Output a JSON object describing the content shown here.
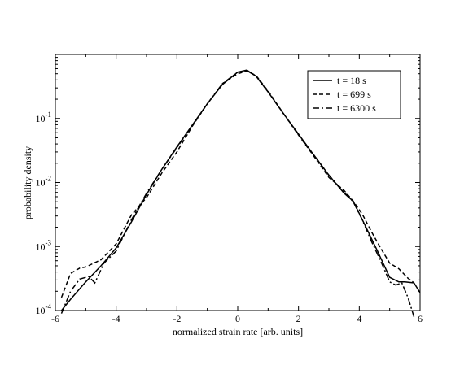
{
  "chart_data": {
    "type": "line",
    "title": "",
    "xlabel": "normalized strain rate [arb. units]",
    "ylabel": "probability density",
    "xlim": [
      -6,
      6
    ],
    "ylim": [
      0.0001,
      1.0
    ],
    "yscale": "log",
    "grid": false,
    "legend_position": "top-right",
    "x_ticks": [
      -6,
      -4,
      -2,
      0,
      2,
      4,
      6
    ],
    "x_tick_labels": [
      "-6",
      "-4",
      "-2",
      "0",
      "2",
      "4",
      "6"
    ],
    "y_ticks": [
      0.0001,
      0.001,
      0.01,
      0.1
    ],
    "y_tick_labels": [
      {
        "base": "10",
        "exp": "-4"
      },
      {
        "base": "10",
        "exp": "-3"
      },
      {
        "base": "10",
        "exp": "-2"
      },
      {
        "base": "10",
        "exp": "-1"
      }
    ],
    "series": [
      {
        "name": "t = 18 s",
        "dash": "solid",
        "x": [
          -5.8,
          -5.5,
          -5.0,
          -4.5,
          -4.0,
          -3.5,
          -3.0,
          -2.5,
          -2.0,
          -1.5,
          -1.0,
          -0.5,
          0.0,
          0.3,
          0.6,
          1.0,
          1.5,
          2.0,
          2.5,
          3.0,
          3.5,
          3.8,
          4.2,
          4.6,
          5.0,
          5.3,
          5.5,
          5.8,
          6.0
        ],
        "y": [
          0.0001,
          0.00015,
          0.00028,
          0.0005,
          0.00095,
          0.0024,
          0.0065,
          0.016,
          0.036,
          0.078,
          0.17,
          0.34,
          0.53,
          0.57,
          0.46,
          0.26,
          0.12,
          0.057,
          0.027,
          0.013,
          0.0068,
          0.0051,
          0.0021,
          0.00085,
          0.00033,
          0.00028,
          0.00028,
          0.00027,
          0.00019
        ]
      },
      {
        "name": "t = 699 s",
        "dash": "5,3",
        "x": [
          -5.8,
          -5.5,
          -5.2,
          -5.0,
          -4.5,
          -4.0,
          -3.5,
          -3.0,
          -2.5,
          -2.0,
          -1.5,
          -1.0,
          -0.5,
          0.0,
          0.3,
          0.6,
          1.0,
          1.5,
          2.0,
          2.5,
          3.0,
          3.5,
          3.8,
          4.1,
          4.4,
          4.7,
          5.0,
          5.3,
          5.6,
          5.8
        ],
        "y": [
          0.00016,
          0.00038,
          0.00046,
          0.00048,
          0.00062,
          0.0011,
          0.0031,
          0.0058,
          0.014,
          0.03,
          0.075,
          0.17,
          0.35,
          0.5,
          0.55,
          0.47,
          0.27,
          0.12,
          0.055,
          0.026,
          0.012,
          0.0075,
          0.0051,
          0.0032,
          0.0017,
          0.00095,
          0.00055,
          0.00045,
          0.00032,
          0.00027
        ]
      },
      {
        "name": "t = 6300 s",
        "dash": "8,3,2,3",
        "x": [
          -5.8,
          -5.5,
          -5.2,
          -4.9,
          -4.7,
          -4.4,
          -4.0,
          -3.5,
          -3.0,
          -2.5,
          -2.0,
          -1.5,
          -1.0,
          -0.5,
          0.0,
          0.3,
          0.6,
          1.0,
          1.5,
          2.0,
          2.5,
          3.0,
          3.5,
          3.8,
          4.1,
          4.4,
          4.7,
          5.0,
          5.2,
          5.4,
          5.6,
          5.8
        ],
        "y": [
          9e-05,
          0.0002,
          0.00031,
          0.00034,
          0.00027,
          0.00055,
          0.00085,
          0.0026,
          0.0068,
          0.016,
          0.035,
          0.077,
          0.17,
          0.35,
          0.53,
          0.56,
          0.46,
          0.26,
          0.12,
          0.056,
          0.027,
          0.013,
          0.007,
          0.005,
          0.0026,
          0.0012,
          0.0006,
          0.00028,
          0.00025,
          0.00027,
          0.00016,
          8e-05
        ]
      }
    ]
  }
}
